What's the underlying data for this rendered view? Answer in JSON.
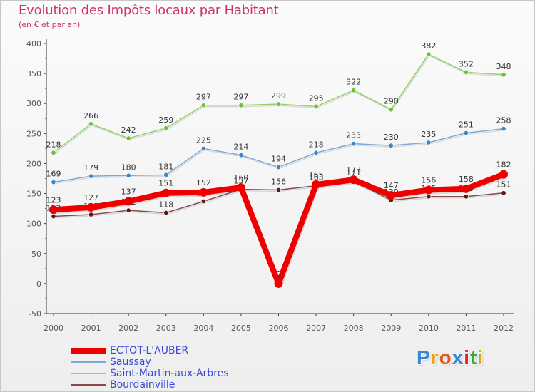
{
  "header": {
    "title": "Evolution des Impôts locaux par Habitant",
    "subtitle": "(en € et par an)"
  },
  "logo": {
    "letters": [
      "P",
      "r",
      "o",
      "x",
      "i",
      "t",
      "i"
    ],
    "colors": [
      "#3a87d6",
      "#f0a020",
      "#e05a1a",
      "#3a87d6",
      "#e02020",
      "#3aa83a",
      "#e0a020"
    ]
  },
  "colors": {
    "axis_text": "#555555",
    "grid": "#dddddd",
    "tick_red": "#cc2244",
    "label_text": "#333333"
  },
  "chart_data": {
    "type": "line",
    "title": "Evolution des Impôts locaux par Habitant",
    "subtitle": "(en € et par an)",
    "xlabel": "",
    "ylabel": "",
    "ylim": [
      -50,
      400
    ],
    "yticks": [
      -50,
      0,
      50,
      100,
      150,
      200,
      250,
      300,
      350,
      400
    ],
    "categories": [
      "2000",
      "2001",
      "2002",
      "2003",
      "2004",
      "2005",
      "2006",
      "2007",
      "2008",
      "2009",
      "2010",
      "2011",
      "2012"
    ],
    "grid": false,
    "legend_position": "bottom-left",
    "series": [
      {
        "name": "Saint-Martin-aux-Arbres",
        "color": "#8fd16a",
        "marker": "#6cc03a",
        "width": 1.5,
        "values": [
          218,
          266,
          242,
          259,
          297,
          297,
          299,
          295,
          322,
          290,
          382,
          352,
          348
        ]
      },
      {
        "name": "Saussay",
        "color": "#7fa9d6",
        "marker": "#3d86c6",
        "width": 1.5,
        "values": [
          169,
          179,
          180,
          181,
          225,
          214,
          194,
          218,
          233,
          230,
          235,
          251,
          258
        ]
      },
      {
        "name": "Bourdainville",
        "color": "#8a4a4a",
        "marker": "#5a1a1a",
        "width": 1.5,
        "values": [
          112,
          115,
          122,
          118,
          137,
          157,
          156,
          163,
          171,
          139,
          145,
          145,
          151
        ]
      },
      {
        "name": "ECTOT-L'AUBER",
        "color": "#ee0000",
        "marker": "#ee0000",
        "width": 8,
        "values": [
          123,
          127,
          137,
          151,
          152,
          160,
          0,
          165,
          173,
          147,
          156,
          158,
          182
        ]
      }
    ],
    "legend_order": [
      "ECTOT-L'AUBER",
      "Saussay",
      "Saint-Martin-aux-Arbres",
      "Bourdainville"
    ]
  }
}
